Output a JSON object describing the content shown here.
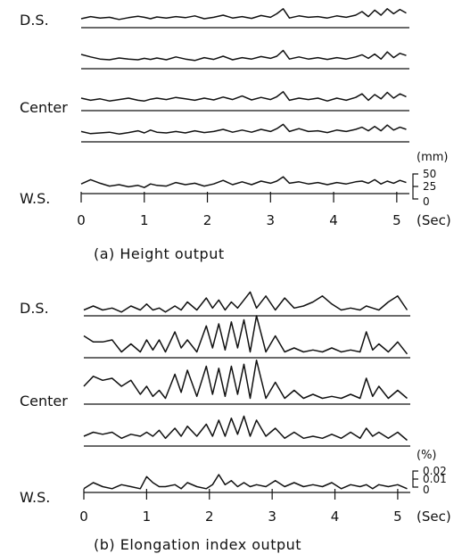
{
  "chart_data": [
    {
      "type": "line",
      "caption": "(a) Height output",
      "row_labels": [
        "D.S.",
        "",
        "Center",
        "",
        "W.S."
      ],
      "x_unit": "(Sec)",
      "x_ticks": [
        "0",
        "1",
        "2",
        "3",
        "4",
        "5"
      ],
      "xlim": [
        0,
        5.2
      ],
      "y_unit": "(mm)",
      "scale_ticks": [
        "50",
        "25",
        "0"
      ],
      "ylim": [
        0,
        50
      ],
      "x": [
        0,
        0.15,
        0.3,
        0.45,
        0.6,
        0.75,
        0.9,
        1.0,
        1.1,
        1.2,
        1.35,
        1.5,
        1.65,
        1.8,
        1.95,
        2.1,
        2.25,
        2.4,
        2.55,
        2.7,
        2.85,
        3.0,
        3.1,
        3.2,
        3.3,
        3.45,
        3.6,
        3.75,
        3.9,
        4.05,
        4.2,
        4.35,
        4.45,
        4.55,
        4.65,
        4.75,
        4.85,
        4.95,
        5.05,
        5.15
      ],
      "series": [
        {
          "values": [
            20,
            26,
            22,
            24,
            18,
            23,
            27,
            24,
            20,
            25,
            22,
            26,
            23,
            28,
            20,
            24,
            30,
            22,
            26,
            21,
            29,
            24,
            34,
            48,
            22,
            28,
            24,
            26,
            22,
            28,
            24,
            30,
            40,
            26,
            44,
            30,
            48,
            34,
            46,
            36
          ]
        },
        {
          "values": [
            35,
            28,
            22,
            20,
            25,
            22,
            20,
            24,
            21,
            25,
            20,
            28,
            22,
            18,
            26,
            21,
            30,
            20,
            26,
            22,
            29,
            24,
            30,
            46,
            22,
            28,
            22,
            26,
            21,
            26,
            22,
            28,
            34,
            24,
            36,
            22,
            42,
            26,
            38,
            32
          ]
        },
        {
          "values": [
            30,
            24,
            28,
            22,
            26,
            30,
            24,
            22,
            27,
            30,
            26,
            32,
            28,
            24,
            30,
            25,
            33,
            26,
            36,
            25,
            32,
            26,
            34,
            48,
            24,
            30,
            26,
            30,
            22,
            30,
            24,
            32,
            42,
            24,
            40,
            28,
            46,
            30,
            42,
            34
          ]
        },
        {
          "values": [
            24,
            18,
            20,
            22,
            17,
            21,
            26,
            20,
            28,
            22,
            20,
            24,
            20,
            26,
            21,
            24,
            30,
            22,
            28,
            22,
            30,
            24,
            32,
            44,
            24,
            32,
            24,
            26,
            21,
            28,
            24,
            30,
            36,
            26,
            38,
            26,
            42,
            28,
            36,
            30
          ]
        },
        {
          "values": [
            22,
            34,
            24,
            16,
            20,
            14,
            18,
            12,
            22,
            18,
            16,
            26,
            20,
            24,
            16,
            22,
            32,
            20,
            28,
            20,
            30,
            24,
            30,
            42,
            24,
            28,
            22,
            26,
            20,
            26,
            22,
            28,
            30,
            24,
            34,
            22,
            30,
            24,
            32,
            26
          ]
        }
      ]
    },
    {
      "type": "line",
      "caption": "(b) Elongation index output",
      "row_labels": [
        "D.S.",
        "",
        "Center",
        "",
        "W.S."
      ],
      "x_unit": "(Sec)",
      "x_ticks": [
        "0",
        "1",
        "2",
        "3",
        "4",
        "5"
      ],
      "xlim": [
        0,
        5.2
      ],
      "y_unit": "(%)",
      "scale_ticks": [
        "0.02",
        "0.01",
        "0"
      ],
      "ylim": [
        0,
        0.02
      ],
      "x": [
        0,
        0.15,
        0.3,
        0.45,
        0.6,
        0.75,
        0.9,
        1.0,
        1.1,
        1.2,
        1.3,
        1.45,
        1.55,
        1.65,
        1.8,
        1.95,
        2.05,
        2.15,
        2.25,
        2.35,
        2.45,
        2.55,
        2.65,
        2.75,
        2.9,
        3.05,
        3.2,
        3.35,
        3.5,
        3.65,
        3.8,
        3.95,
        4.1,
        4.25,
        4.4,
        4.5,
        4.6,
        4.7,
        4.85,
        5.0,
        5.15
      ],
      "series": [
        {
          "values": [
            0.002,
            0.004,
            0.002,
            0.003,
            0.001,
            0.004,
            0.002,
            0.005,
            0.002,
            0.003,
            0.001,
            0.004,
            0.002,
            0.006,
            0.002,
            0.008,
            0.003,
            0.007,
            0.002,
            0.006,
            0.003,
            0.007,
            0.011,
            0.003,
            0.009,
            0.002,
            0.008,
            0.003,
            0.004,
            0.006,
            0.009,
            0.005,
            0.002,
            0.003,
            0.002,
            0.004,
            0.003,
            0.002,
            0.006,
            0.009,
            0.002
          ]
        },
        {
          "values": [
            0.01,
            0.007,
            0.007,
            0.008,
            0.002,
            0.006,
            0.002,
            0.008,
            0.003,
            0.008,
            0.002,
            0.012,
            0.004,
            0.008,
            0.002,
            0.015,
            0.004,
            0.016,
            0.003,
            0.017,
            0.004,
            0.018,
            0.002,
            0.02,
            0.002,
            0.01,
            0.002,
            0.004,
            0.002,
            0.003,
            0.002,
            0.004,
            0.002,
            0.003,
            0.002,
            0.012,
            0.003,
            0.006,
            0.002,
            0.007,
            0.001
          ]
        },
        {
          "values": [
            0.008,
            0.013,
            0.011,
            0.012,
            0.008,
            0.011,
            0.004,
            0.008,
            0.003,
            0.006,
            0.002,
            0.014,
            0.005,
            0.016,
            0.003,
            0.018,
            0.004,
            0.017,
            0.003,
            0.018,
            0.004,
            0.019,
            0.002,
            0.021,
            0.002,
            0.01,
            0.002,
            0.006,
            0.002,
            0.004,
            0.002,
            0.003,
            0.002,
            0.004,
            0.002,
            0.012,
            0.003,
            0.008,
            0.002,
            0.006,
            0.002
          ]
        },
        {
          "values": [
            0.004,
            0.006,
            0.005,
            0.006,
            0.003,
            0.005,
            0.004,
            0.006,
            0.004,
            0.007,
            0.003,
            0.008,
            0.004,
            0.009,
            0.004,
            0.01,
            0.004,
            0.012,
            0.004,
            0.013,
            0.005,
            0.014,
            0.004,
            0.012,
            0.004,
            0.008,
            0.003,
            0.006,
            0.003,
            0.004,
            0.003,
            0.005,
            0.003,
            0.006,
            0.003,
            0.008,
            0.004,
            0.006,
            0.003,
            0.006,
            0.002
          ]
        },
        {
          "values": [
            0.001,
            0.004,
            0.002,
            0.001,
            0.003,
            0.002,
            0.001,
            0.007,
            0.004,
            0.002,
            0.002,
            0.003,
            0.001,
            0.004,
            0.002,
            0.001,
            0.003,
            0.008,
            0.003,
            0.005,
            0.002,
            0.004,
            0.002,
            0.003,
            0.002,
            0.005,
            0.002,
            0.004,
            0.002,
            0.003,
            0.002,
            0.004,
            0.001,
            0.003,
            0.002,
            0.003,
            0.001,
            0.003,
            0.002,
            0.003,
            0.001
          ]
        }
      ]
    }
  ]
}
